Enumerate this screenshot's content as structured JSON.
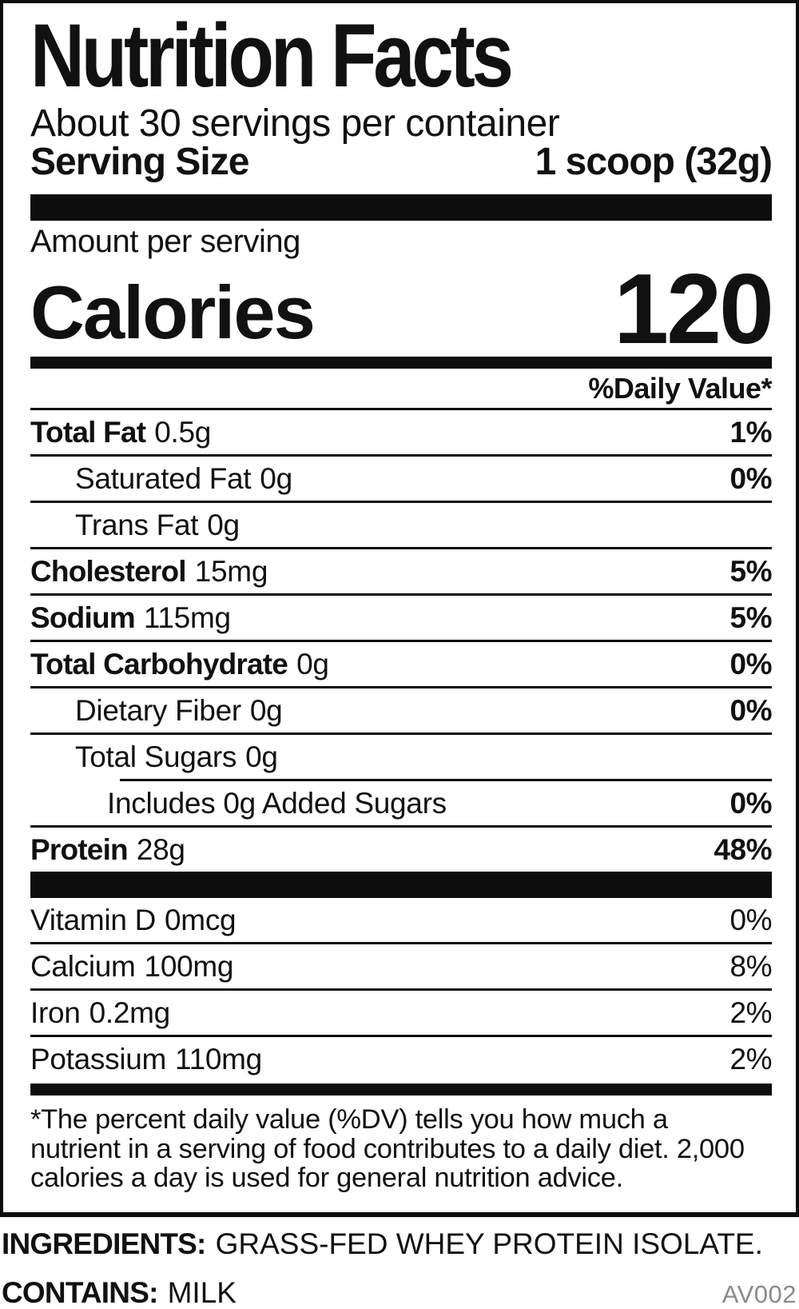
{
  "label": {
    "title": "Nutrition Facts",
    "servings_per_container": "About 30 servings per container",
    "serving_size_label": "Serving Size",
    "serving_size_value": "1 scoop (32g)",
    "amount_per_serving": "Amount per serving",
    "calories_label": "Calories",
    "calories_value": "120",
    "daily_value_header": "%Daily Value*",
    "nutrients": [
      {
        "name": "Total Fat",
        "amount": "0.5g",
        "dv": "1%"
      },
      {
        "name": "Saturated Fat",
        "amount": "0g",
        "dv": "0%"
      },
      {
        "name": "Trans Fat",
        "amount": "0g",
        "dv": ""
      },
      {
        "name": "Cholesterol",
        "amount": "15mg",
        "dv": "5%"
      },
      {
        "name": "Sodium",
        "amount": "115mg",
        "dv": "5%"
      },
      {
        "name": "Total Carbohydrate",
        "amount": "0g",
        "dv": "0%"
      },
      {
        "name": "Dietary Fiber",
        "amount": "0g",
        "dv": "0%"
      },
      {
        "name": "Total Sugars",
        "amount": "0g",
        "dv": ""
      },
      {
        "name": "Includes 0g Added Sugars",
        "amount": "",
        "dv": "0%"
      },
      {
        "name": "Protein",
        "amount": "28g",
        "dv": "48%"
      }
    ],
    "vitamins": [
      {
        "name": "Vitamin D",
        "amount": "0mcg",
        "dv": "0%"
      },
      {
        "name": "Calcium",
        "amount": "100mg",
        "dv": "8%"
      },
      {
        "name": "Iron",
        "amount": "0.2mg",
        "dv": "2%"
      },
      {
        "name": "Potassium",
        "amount": "110mg",
        "dv": "2%"
      }
    ],
    "footnote": "*The percent daily value (%DV) tells you how much a nutrient in a serving of food contributes to a daily diet. 2,000 calories a day is used for general nutrition advice."
  },
  "below_label": {
    "ingredients_label": "INGREDIENTS:",
    "ingredients_value": "GRASS-FED WHEY PROTEIN ISOLATE.",
    "contains_label": "CONTAINS:",
    "contains_value": "MILK",
    "product_code": "AV002"
  },
  "colors": {
    "text": "#111111",
    "bars": "#0d0d0d",
    "muted": "#8a8a8a"
  }
}
